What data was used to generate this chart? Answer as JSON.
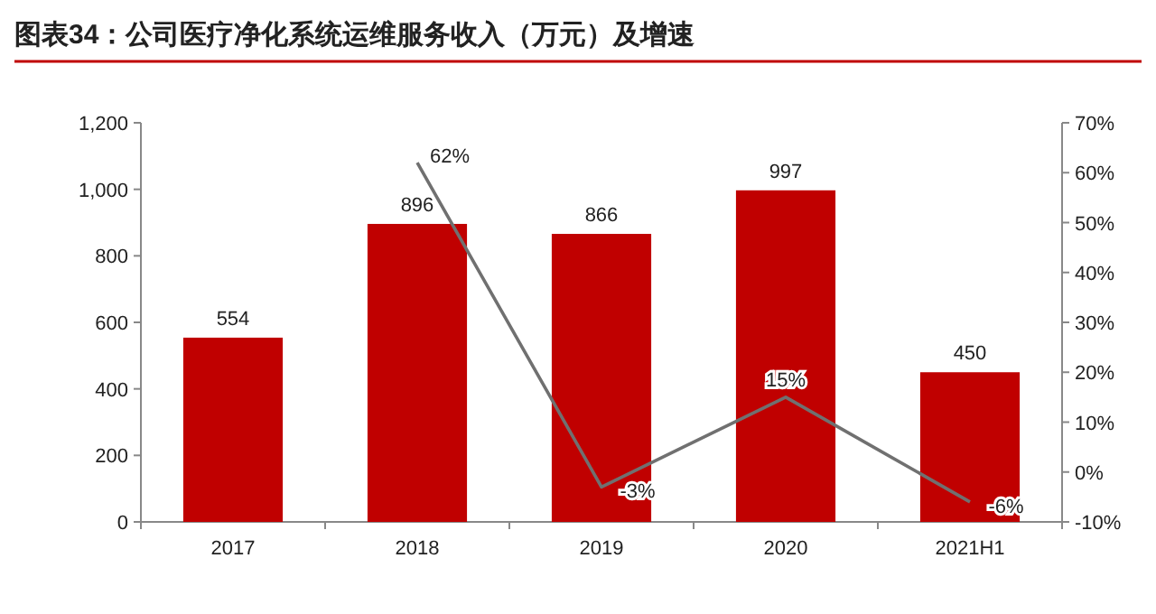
{
  "chart_data": {
    "type": "bar",
    "title": "图表34：公司医疗净化系统运维服务收入（万元）及增速",
    "categories": [
      "2017",
      "2018",
      "2019",
      "2020",
      "2021H1"
    ],
    "series": [
      {
        "color": "#c00000",
        "values": [
          554,
          896,
          866,
          997,
          450
        ],
        "value_labels": [
          "554",
          "896",
          "866",
          "997",
          "450"
        ]
      },
      {
        "type": "line",
        "axis": "y2",
        "color": "#707070",
        "values": [
          null,
          62,
          -3,
          15,
          -6
        ],
        "value_labels": [
          null,
          "62%",
          "-3%",
          "15%",
          "-6%"
        ]
      }
    ],
    "ylim": [
      0,
      1200
    ],
    "yticks": [
      0,
      200,
      400,
      600,
      800,
      {
        "value": 1000,
        "label": "1,000"
      },
      {
        "value": 1200,
        "label": "1,200"
      }
    ],
    "y2lim": [
      -10,
      70
    ],
    "y2ticks": [
      {
        "value": -10,
        "label": "-10%"
      },
      {
        "value": 0,
        "label": "0%"
      },
      {
        "value": 10,
        "label": "10%"
      },
      {
        "value": 20,
        "label": "20%"
      },
      {
        "value": 30,
        "label": "30%"
      },
      {
        "value": 40,
        "label": "40%"
      },
      {
        "value": 50,
        "label": "50%"
      },
      {
        "value": 60,
        "label": "60%"
      },
      {
        "value": 70,
        "label": "70%"
      }
    ]
  }
}
